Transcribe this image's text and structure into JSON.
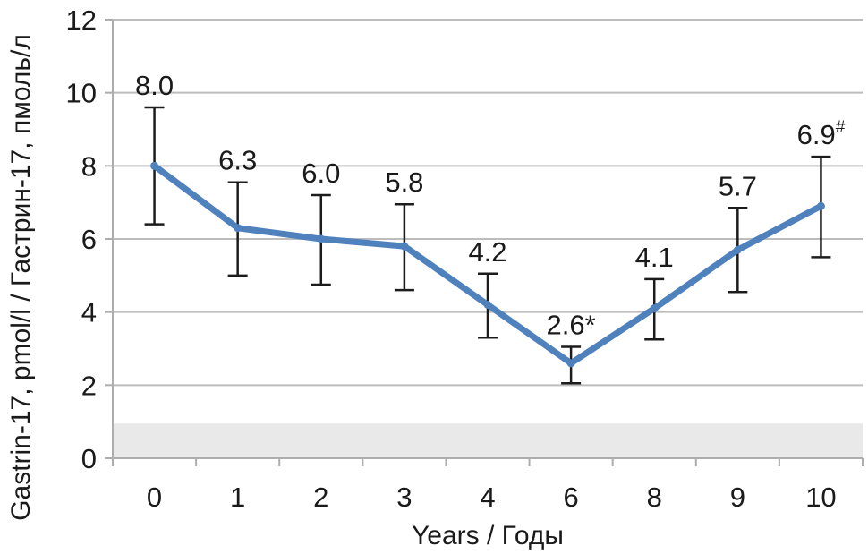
{
  "chart_data": {
    "type": "line",
    "title": "",
    "xlabel": "Years / Годы",
    "ylabel": "Gastrin-17, pmol/l / Гастрин-17, пмоль/л",
    "x_tick_labels": [
      "0",
      "1",
      "2",
      "3",
      "4",
      "6",
      "8",
      "9",
      "10"
    ],
    "y_tick_labels": [
      "0",
      "2",
      "4",
      "6",
      "8",
      "10",
      "12"
    ],
    "yticks": [
      0,
      2,
      4,
      6,
      8,
      10,
      12
    ],
    "ylim": [
      0,
      12
    ],
    "grid": true,
    "legend_position": "none",
    "series": [
      {
        "name": "Gastrin-17",
        "color": "#4F81BD",
        "values": [
          8.0,
          6.3,
          6.0,
          5.8,
          4.2,
          2.6,
          4.1,
          5.7,
          6.9
        ],
        "point_labels": [
          "8.0",
          "6.3",
          "6.0",
          "5.8",
          "4.2",
          "2.6*",
          "4.1",
          "5.7",
          "6.9#"
        ],
        "error_upper": [
          9.6,
          7.55,
          7.2,
          6.95,
          5.05,
          3.05,
          4.9,
          6.85,
          8.25
        ],
        "error_lower": [
          6.4,
          5.0,
          4.75,
          4.6,
          3.3,
          2.05,
          3.25,
          4.55,
          5.5
        ]
      }
    ],
    "reference_band": {
      "from": 0,
      "to": 0.95,
      "color": "#E9E9E9"
    },
    "colors": {
      "line": "#4F81BD",
      "error_bar": "#1c1c1c",
      "gridline": "#bdbdbd",
      "axis": "#adadad",
      "text": "#1a1a1a",
      "background": "#ffffff"
    }
  }
}
